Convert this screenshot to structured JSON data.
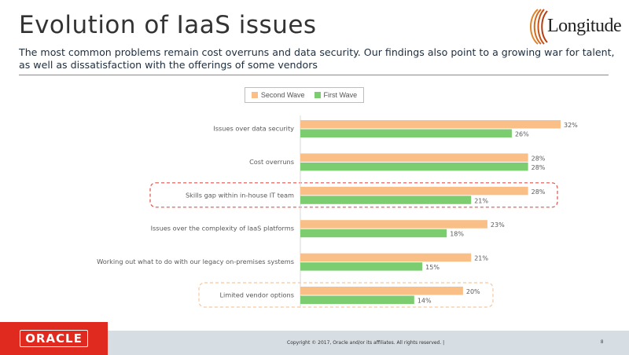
{
  "slide": {
    "title": "Evolution of IaaS issues",
    "subtitle": "The most common problems remain cost overruns and data security. Our findings also point to a growing war for talent, as well as dissatisfaction with the offerings of some vendors",
    "logo_text": "Longitude",
    "footer": {
      "brand": "ORACLE",
      "copyright": "Copyright © 2017, Oracle and/or its affiliates. All rights reserved.  |",
      "page_number": "8"
    }
  },
  "colors": {
    "second_wave": "#f9bf86",
    "first_wave": "#7ccc70",
    "highlight_red": "#e0504a",
    "highlight_orange": "#f8c79b",
    "label_text": "#595959",
    "oracle_red": "#e12a1f"
  },
  "chart_data": {
    "type": "bar",
    "orientation": "horizontal",
    "categories": [
      "Issues over data security",
      "Cost overruns",
      "Skills gap within in-house IT team",
      "Issues over the complexity of IaaS platforms",
      "Working out what to do with our legacy on-premises systems",
      "Limited vendor options"
    ],
    "series": [
      {
        "name": "Second Wave",
        "values": [
          32,
          28,
          28,
          23,
          21,
          20
        ],
        "labels": [
          "32%",
          "28%",
          "28%",
          "23%",
          "21%",
          "20%"
        ]
      },
      {
        "name": "First Wave",
        "values": [
          26,
          28,
          21,
          18,
          15,
          14
        ],
        "labels": [
          "26%",
          "28%",
          "21%",
          "18%",
          "15%",
          "14%"
        ]
      }
    ],
    "xlim": [
      0,
      32
    ],
    "legend": "top-center",
    "grid": false,
    "highlighted_categories": [
      {
        "category": "Skills gap within in-house IT team",
        "style": "dashed-red"
      },
      {
        "category": "Limited vendor options",
        "style": "dashed-orange"
      }
    ]
  }
}
